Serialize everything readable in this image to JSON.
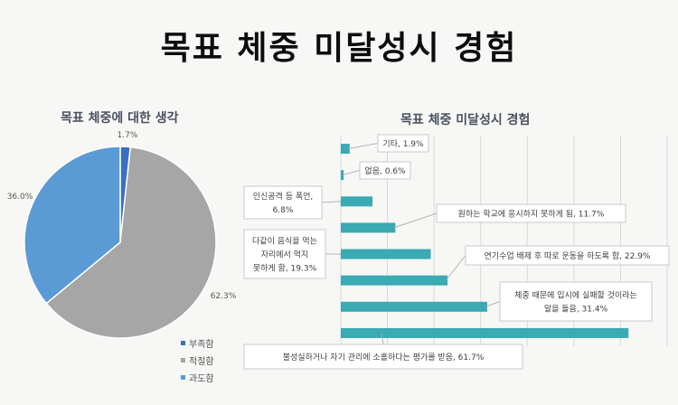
{
  "main_title": "목표 체중 미달성시 경험",
  "colors": {
    "blue_dark": "#3a6fc4",
    "gray": "#a6a6a6",
    "blue_light": "#5b9bd5",
    "teal": "#3aaab3"
  },
  "chart_data": [
    {
      "type": "pie",
      "title": "목표 체중에 대한 생각",
      "categories": [
        "부족함",
        "적절함",
        "과도함"
      ],
      "values": [
        1.7,
        62.3,
        36.0
      ],
      "data_labels": [
        "1.7%",
        "62.3%",
        "36.0%"
      ],
      "legend": "bottom-right"
    },
    {
      "type": "bar",
      "orientation": "horizontal",
      "title": "목표 체중 미달성시 경험",
      "categories": [
        "기타",
        "없음",
        "인신공격 등 폭언",
        "원하는 학교에 응시하지 못하게 됨",
        "다같이 음식을 먹는 자리에서 먹지 못하게 함",
        "연기수업 배제 후 따로 운동을 하도록 함",
        "체중 때문에 입시에 실패할 것이라는 말을 들음",
        "불성실하거나 자기 관리에 소홀하다는 평가를 받음"
      ],
      "values": [
        1.9,
        0.6,
        6.8,
        11.7,
        19.3,
        22.9,
        31.4,
        61.7
      ],
      "data_labels": [
        [
          "기타, 1.9%"
        ],
        [
          "없음, 0.6%"
        ],
        [
          "인신공격 등 폭언,",
          "6.8%"
        ],
        [
          "원하는 학교에 응시하지 못하게 됨, 11.7%"
        ],
        [
          "다같이 음식을 먹는",
          "자리에서 먹지",
          "못하게 함, 19.3%"
        ],
        [
          "연기수업 배제 후 따로 운동을 하도록 함, 22.9%"
        ],
        [
          "체중 때문에 입시에 실패할 것이라는",
          "말을 들음, 31.4%"
        ],
        [
          "불성실하거나 자기 관리에 소홀하다는 평가를 받음, 61.7%"
        ]
      ],
      "xlim": [
        0,
        70
      ],
      "grid": true
    }
  ]
}
